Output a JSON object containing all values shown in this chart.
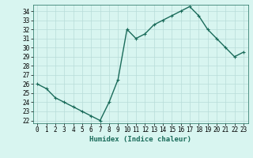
{
  "x": [
    0,
    1,
    2,
    3,
    4,
    5,
    6,
    7,
    8,
    9,
    10,
    11,
    12,
    13,
    14,
    15,
    16,
    17,
    18,
    19,
    20,
    21,
    22,
    23
  ],
  "y": [
    26,
    25.5,
    24.5,
    24,
    23.5,
    23,
    22.5,
    22,
    24,
    26.5,
    32,
    31,
    31.5,
    32.5,
    33,
    33.5,
    34,
    34.5,
    33.5,
    32,
    31,
    30,
    29,
    29.5
  ],
  "line_color": "#1a6b5a",
  "bg_color": "#d8f5f0",
  "grid_color": "#b8dcd8",
  "xlabel": "Humidex (Indice chaleur)",
  "xlim": [
    -0.5,
    23.5
  ],
  "ylim": [
    21.7,
    34.7
  ],
  "yticks": [
    22,
    23,
    24,
    25,
    26,
    27,
    28,
    29,
    30,
    31,
    32,
    33,
    34
  ],
  "xticks": [
    0,
    1,
    2,
    3,
    4,
    5,
    6,
    7,
    8,
    9,
    10,
    11,
    12,
    13,
    14,
    15,
    16,
    17,
    18,
    19,
    20,
    21,
    22,
    23
  ],
  "markersize": 2.5,
  "linewidth": 1.0,
  "tick_fontsize": 5.5,
  "xlabel_fontsize": 6.5
}
